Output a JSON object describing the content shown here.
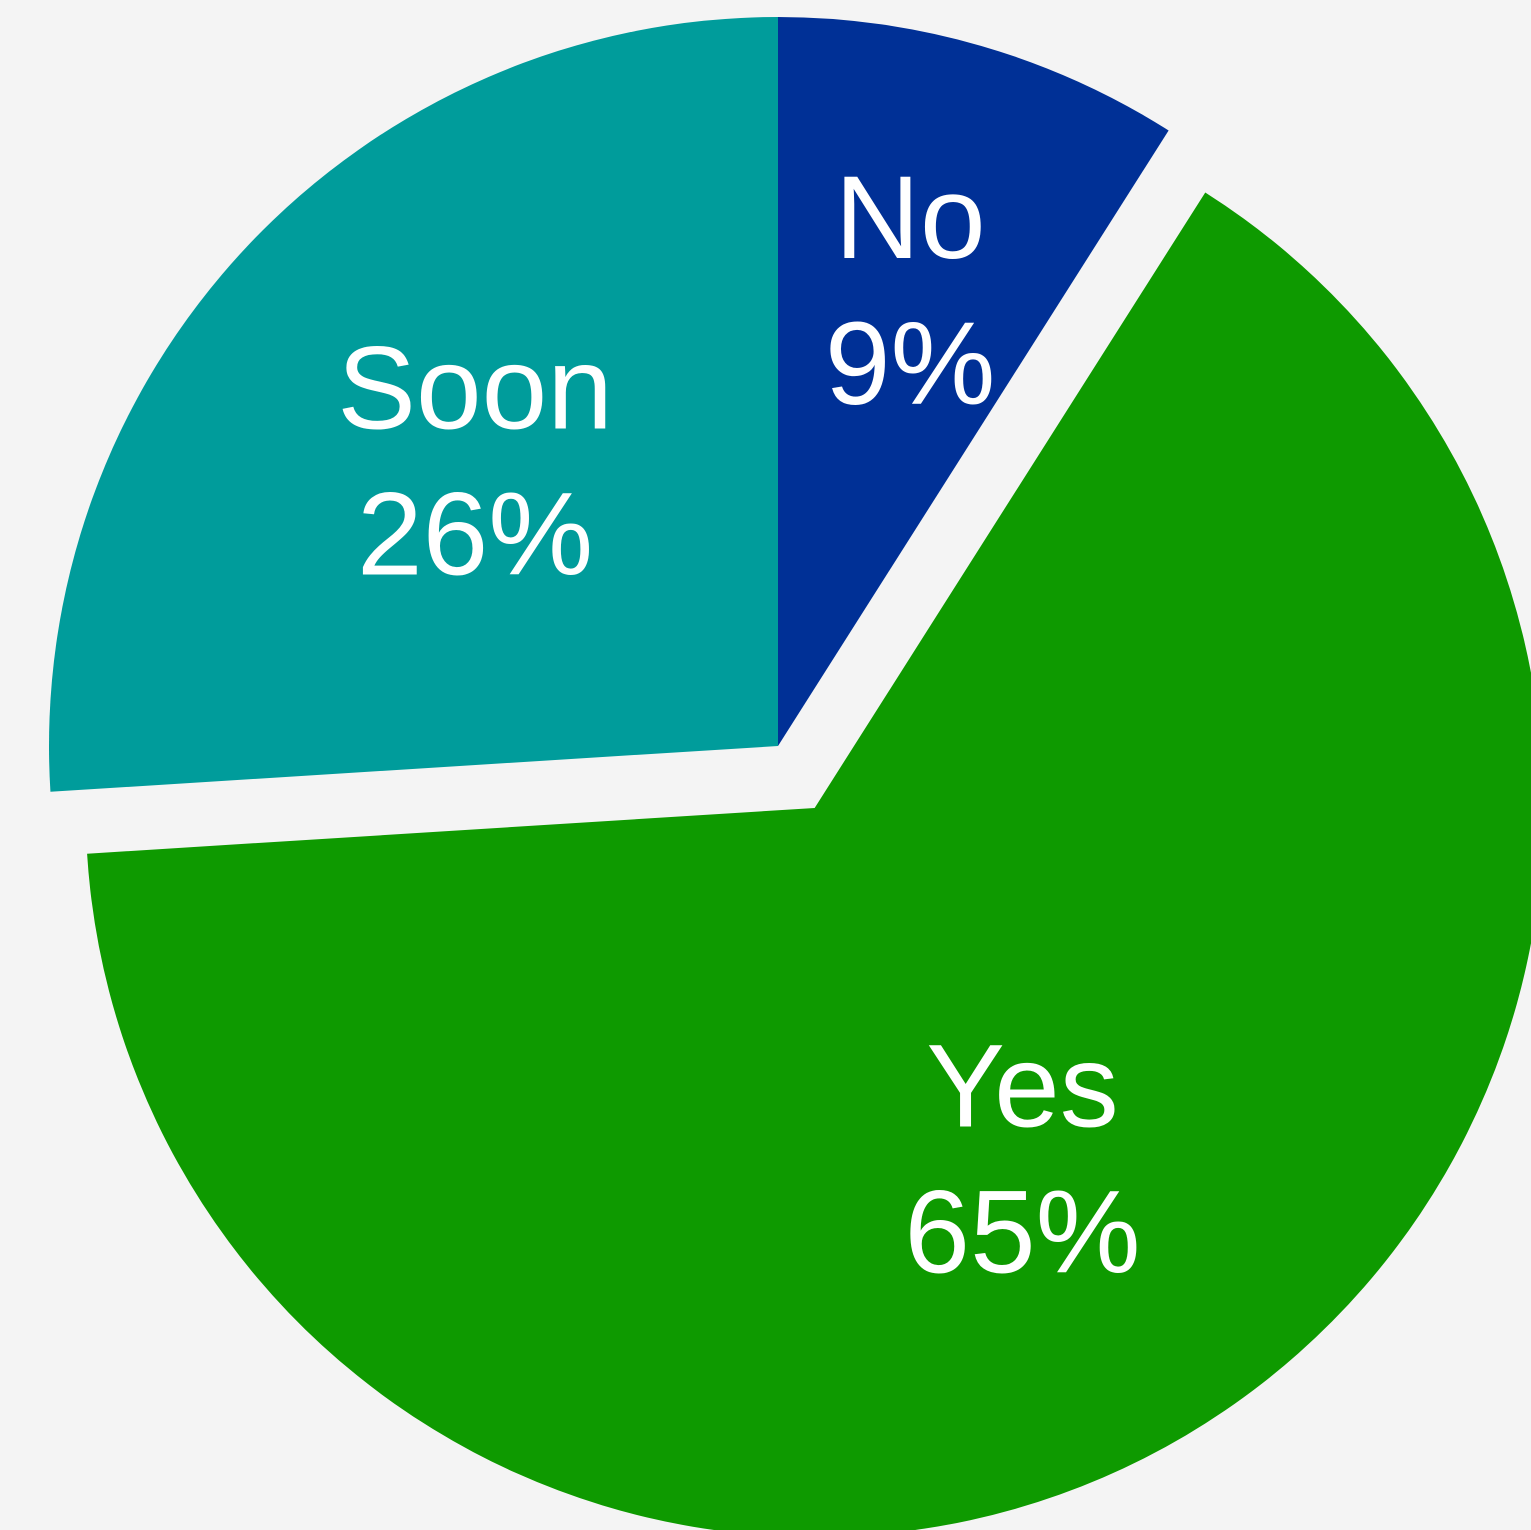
{
  "background_color": "#f4f4f4",
  "chart_data": {
    "type": "pie",
    "title": "",
    "slices": [
      {
        "label": "No",
        "value": 9,
        "display": "9%",
        "color": "#003096"
      },
      {
        "label": "Yes",
        "value": 65,
        "display": "65%",
        "color": "#0e9a00"
      },
      {
        "label": "Soon",
        "value": 26,
        "display": "26%",
        "color": "#009c9b"
      }
    ],
    "start_angle_deg": 0,
    "direction": "clockwise",
    "exploded": [
      "Yes"
    ],
    "legend": "none",
    "label_text_color": "#ffffff"
  }
}
